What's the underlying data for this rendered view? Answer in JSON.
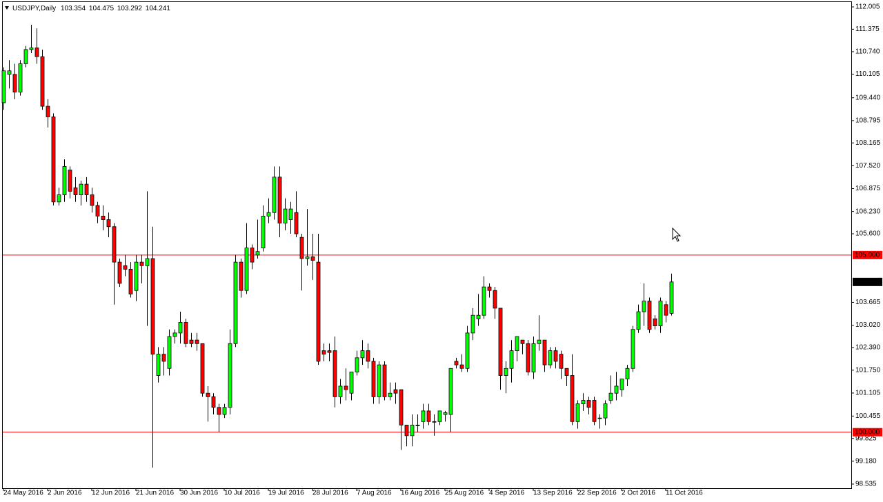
{
  "chart_data": {
    "type": "candlestick",
    "symbol": "USDJPY,Daily",
    "header_values": [
      103.354,
      104.475,
      103.292,
      104.241
    ],
    "categories": [
      "24 May 2016",
      null,
      null,
      null,
      null,
      null,
      null,
      null,
      "2 Jun 2016",
      null,
      null,
      null,
      null,
      null,
      null,
      null,
      "12 Jun 2016",
      null,
      null,
      null,
      null,
      null,
      null,
      null,
      "21 Jun 2016",
      null,
      null,
      null,
      null,
      null,
      null,
      null,
      "30 Jun 2016",
      null,
      null,
      null,
      null,
      null,
      null,
      null,
      "10 Jul 2016",
      null,
      null,
      null,
      null,
      null,
      null,
      null,
      "19 Jul 2016",
      null,
      null,
      null,
      null,
      null,
      null,
      null,
      "28 Jul 2016",
      null,
      null,
      null,
      null,
      null,
      null,
      null,
      "7 Aug 2016",
      null,
      null,
      null,
      null,
      null,
      null,
      null,
      "16 Aug 2016",
      null,
      null,
      null,
      null,
      null,
      null,
      null,
      "25 Aug 2016",
      null,
      null,
      null,
      null,
      null,
      null,
      null,
      "4 Sep 2016",
      null,
      null,
      null,
      null,
      null,
      null,
      null,
      "13 Sep 2016",
      null,
      null,
      null,
      null,
      null,
      null,
      null,
      "22 Sep 2016",
      null,
      null,
      null,
      null,
      null,
      null,
      null,
      "2 Oct 2016",
      null,
      null,
      null,
      null,
      null,
      null,
      null,
      "11 Oct 2016",
      null
    ],
    "open": [
      109.3,
      110.1,
      110.1,
      109.6,
      110.4,
      110.8,
      110.85,
      110.6,
      109.2,
      108.9,
      106.5,
      106.7,
      107.4,
      106.9,
      106.7,
      107.0,
      106.7,
      106.4,
      106.1,
      106.0,
      105.8,
      104.8,
      104.7,
      104.6,
      104.0,
      104.8,
      104.7,
      104.9,
      101.6,
      102.2,
      101.8,
      102.7,
      102.8,
      103.1,
      102.6,
      102.6,
      102.5,
      101.1,
      101.0,
      100.7,
      100.5,
      100.7,
      102.5,
      104.8,
      104.0,
      105.2,
      105.0,
      105.2,
      106.1,
      106.2,
      107.2,
      105.9,
      106.0,
      106.2,
      105.5,
      104.9,
      104.95,
      104.8,
      102.3,
      102.3,
      102.3,
      101.0,
      101.3,
      101.1,
      101.7,
      102.1,
      102.3,
      102.0,
      101.0,
      101.9,
      101.0,
      101.2,
      101.2,
      100.2,
      99.9,
      100.2,
      100.3,
      100.6,
      100.3,
      100.3,
      100.5,
      100.5,
      102.0,
      101.9,
      101.8,
      102.8,
      103.2,
      103.3,
      104.1,
      104.0,
      103.5,
      101.6,
      101.8,
      102.3,
      102.6,
      102.5,
      101.7,
      102.5,
      102.6,
      101.9,
      102.3,
      102.2,
      101.8,
      101.6,
      100.3,
      100.8,
      100.9,
      100.9,
      100.4,
      100.4,
      100.9,
      101.1,
      101.2,
      101.5,
      101.8,
      102.9,
      103.4,
      103.7,
      103.2,
      103.0,
      103.6,
      103.354
    ],
    "high": [
      110.3,
      110.5,
      110.4,
      110.5,
      110.9,
      111.5,
      111.4,
      110.8,
      109.4,
      109.0,
      106.9,
      107.7,
      107.5,
      107.2,
      107.1,
      107.2,
      106.9,
      106.5,
      106.4,
      106.2,
      105.9,
      104.9,
      105.0,
      104.8,
      105.0,
      105.0,
      106.8,
      105.8,
      102.4,
      102.4,
      102.9,
      102.9,
      103.4,
      103.2,
      102.8,
      102.8,
      102.5,
      101.3,
      101.1,
      100.8,
      100.8,
      102.9,
      105.0,
      104.9,
      105.9,
      105.3,
      106.0,
      106.4,
      106.6,
      107.5,
      107.5,
      106.6,
      106.5,
      106.8,
      105.6,
      106.3,
      105.6,
      105.6,
      102.5,
      102.5,
      102.7,
      101.5,
      101.8,
      101.7,
      102.3,
      102.6,
      102.5,
      102.1,
      102.0,
      102.0,
      101.4,
      101.4,
      101.2,
      100.2,
      100.5,
      100.5,
      100.8,
      100.8,
      100.5,
      100.6,
      100.6,
      101.8,
      102.1,
      102.2,
      103.0,
      103.5,
      103.9,
      104.4,
      104.2,
      104.1,
      103.5,
      102.0,
      102.6,
      102.7,
      102.6,
      102.6,
      102.7,
      103.3,
      102.6,
      102.4,
      102.4,
      102.3,
      101.8,
      102.2,
      100.9,
      101.1,
      101.0,
      101.0,
      100.5,
      100.9,
      101.6,
      101.7,
      101.5,
      101.9,
      103.0,
      103.6,
      104.2,
      103.8,
      103.3,
      103.8,
      103.7,
      104.475
    ],
    "low": [
      109.1,
      109.7,
      109.4,
      109.5,
      110.3,
      110.7,
      110.4,
      109.1,
      108.6,
      106.4,
      106.4,
      106.5,
      106.6,
      106.5,
      106.4,
      106.5,
      106.2,
      105.9,
      105.7,
      105.5,
      103.6,
      104.1,
      104.4,
      103.8,
      103.7,
      104.2,
      103.0,
      99.0,
      101.4,
      101.6,
      101.6,
      102.5,
      102.5,
      102.4,
      102.4,
      102.3,
      101.0,
      100.3,
      100.5,
      100.0,
      100.4,
      100.5,
      102.4,
      103.8,
      103.9,
      104.6,
      104.9,
      105.1,
      105.9,
      106.0,
      105.5,
      105.7,
      105.6,
      105.5,
      104.0,
      104.7,
      104.3,
      101.9,
      102.0,
      102.0,
      100.7,
      100.8,
      100.9,
      100.9,
      101.6,
      101.9,
      101.8,
      100.8,
      100.8,
      100.9,
      100.9,
      100.8,
      99.5,
      99.6,
      99.6,
      100.0,
      100.1,
      100.2,
      99.9,
      100.2,
      100.3,
      100.0,
      101.8,
      101.7,
      101.7,
      102.6,
      103.0,
      103.2,
      103.8,
      103.2,
      101.2,
      101.1,
      101.4,
      102.0,
      102.2,
      101.6,
      101.5,
      102.3,
      101.7,
      101.8,
      101.8,
      101.5,
      101.3,
      100.2,
      100.1,
      100.6,
      100.5,
      100.2,
      100.1,
      100.2,
      100.8,
      100.9,
      101.0,
      101.3,
      101.7,
      102.8,
      103.0,
      102.8,
      102.9,
      102.8,
      103.1,
      103.292
    ],
    "close": [
      110.2,
      110.2,
      109.6,
      110.4,
      110.8,
      110.85,
      110.6,
      109.2,
      108.9,
      106.5,
      106.7,
      107.5,
      106.8,
      106.7,
      107.0,
      106.7,
      106.4,
      106.1,
      106.0,
      105.8,
      104.8,
      104.2,
      104.6,
      103.9,
      104.8,
      104.7,
      104.9,
      102.2,
      102.2,
      102.0,
      102.7,
      102.8,
      103.1,
      102.5,
      102.5,
      102.5,
      101.1,
      101.0,
      100.7,
      100.5,
      100.7,
      102.5,
      104.8,
      104.0,
      105.2,
      104.8,
      105.1,
      106.1,
      106.2,
      107.2,
      105.9,
      106.3,
      106.3,
      105.6,
      104.9,
      104.95,
      104.85,
      102.0,
      102.2,
      102.25,
      101.0,
      101.3,
      101.2,
      101.7,
      102.1,
      102.3,
      102.0,
      101.0,
      101.9,
      101.0,
      101.1,
      101.1,
      100.2,
      99.9,
      100.2,
      100.2,
      100.6,
      100.3,
      100.3,
      100.6,
      100.55,
      101.8,
      101.9,
      101.8,
      102.8,
      103.3,
      103.3,
      104.1,
      104.0,
      103.5,
      101.6,
      101.8,
      102.3,
      102.7,
      102.5,
      101.7,
      102.5,
      102.6,
      101.9,
      102.3,
      102.0,
      101.8,
      101.6,
      100.3,
      100.8,
      100.9,
      100.7,
      100.3,
      100.4,
      100.8,
      101.1,
      101.3,
      101.5,
      101.8,
      102.9,
      103.4,
      103.7,
      102.9,
      103.0,
      103.7,
      103.3,
      104.241
    ],
    "up_color": "#00ff00",
    "down_color": "#ff0000",
    "outline_color": "#000000",
    "ylim": [
      98.418,
      112.141
    ],
    "yticks": [
      112.005,
      111.375,
      {
        "value": 110.74,
        "label": "110.740"
      },
      110.105,
      {
        "value": 109.44,
        "label": "109.440"
      },
      108.795,
      108.165,
      {
        "value": 107.52,
        "label": "107.520"
      },
      106.875,
      {
        "value": 106.23,
        "label": "106.230"
      },
      {
        "value": 105.6,
        "label": "105.600"
      },
      103.665,
      {
        "value": 103.02,
        "label": "103.020"
      },
      {
        "value": 102.39,
        "label": "102.390"
      },
      {
        "value": 101.75,
        "label": "101.750"
      },
      101.105,
      100.455,
      99.825,
      {
        "value": 99.18,
        "label": "99.180"
      },
      98.535
    ],
    "hlines": [
      {
        "value": 105,
        "label": "105.000",
        "color": "#ff0000"
      },
      {
        "value": 100,
        "label": "100.000",
        "color": "#ff0000"
      }
    ],
    "last_price": {
      "value": 104.241,
      "label": "104.241"
    },
    "grid": false
  }
}
